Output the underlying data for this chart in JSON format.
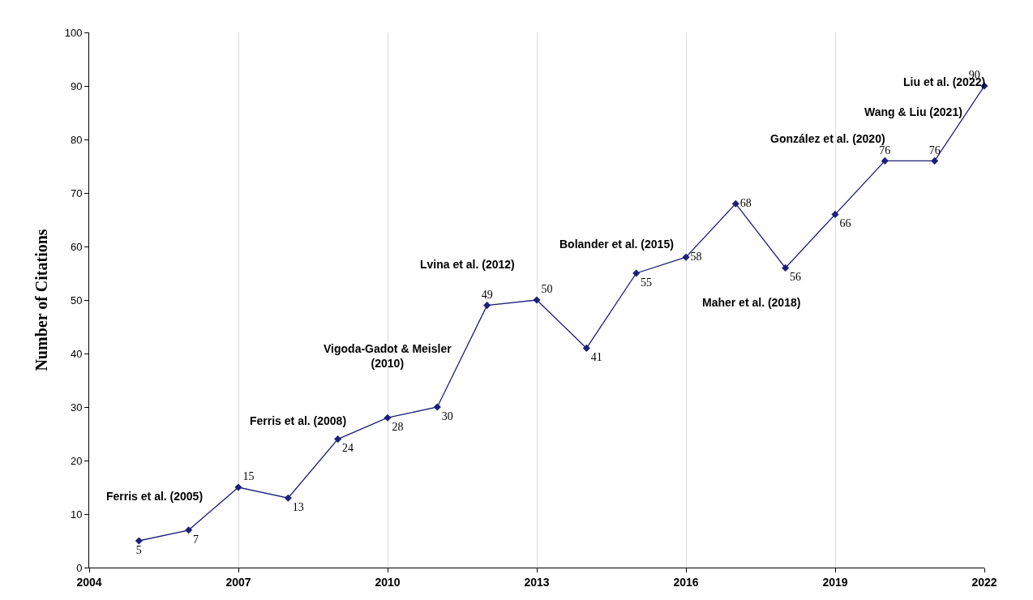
{
  "chart_data": {
    "type": "line",
    "ylabel": "Number of Citations",
    "x": [
      2005,
      2006,
      2007,
      2008,
      2009,
      2010,
      2011,
      2012,
      2013,
      2014,
      2015,
      2016,
      2017,
      2018,
      2019,
      2020,
      2021,
      2022
    ],
    "series": [
      {
        "color": "#1f1f7a",
        "values": [
          5,
          7,
          15,
          13,
          24,
          28,
          30,
          49,
          50,
          41,
          55,
          58,
          68,
          56,
          66,
          76,
          76,
          90
        ]
      }
    ],
    "xlim": [
      2004,
      2022
    ],
    "xticks": [
      2004,
      2007,
      2010,
      2013,
      2016,
      2019,
      2022
    ],
    "ylim": [
      0,
      100
    ],
    "yticks": [
      0,
      10,
      20,
      30,
      40,
      50,
      60,
      70,
      80,
      90,
      100
    ],
    "grid": "x",
    "marker": "diamond",
    "line_style": "solid",
    "data_labels": true,
    "annotations": [
      "Ferris et al. (2005)",
      "Ferris et al. (2008)",
      "Vigoda-Gadot & Meisler\n(2010)",
      "Lvina et al. (2012)",
      "Bolander et al. (2015)",
      "Maher et al. (2018)",
      "González et al. (2020)",
      "Wang & Liu (2021)",
      "Liu et al. (2022)"
    ]
  }
}
